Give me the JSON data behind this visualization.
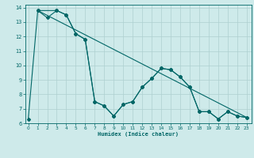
{
  "xlabel": "Humidex (Indice chaleur)",
  "background_color": "#ceeaea",
  "grid_color": "#aed0d0",
  "line_color": "#006666",
  "series1_x": [
    0,
    1,
    2,
    3,
    4,
    5,
    6,
    7,
    8,
    9,
    10,
    11,
    12,
    13,
    14,
    15,
    16,
    17,
    18,
    19,
    20,
    21,
    22,
    23
  ],
  "series1_y": [
    6.3,
    13.8,
    13.3,
    13.8,
    13.5,
    12.2,
    11.8,
    7.5,
    7.2,
    6.5,
    7.3,
    7.5,
    8.5,
    9.1,
    9.8,
    9.7,
    9.2,
    8.5,
    6.8,
    6.8,
    6.3,
    6.8,
    6.5,
    6.4
  ],
  "series2_x": [
    1,
    23
  ],
  "series2_y": [
    13.8,
    6.4
  ],
  "series3_x": [
    1,
    3,
    4,
    5,
    6,
    7,
    8,
    9,
    10,
    11,
    12,
    13,
    14,
    15,
    16,
    17,
    18,
    19,
    20,
    21,
    22,
    23
  ],
  "series3_y": [
    13.8,
    13.8,
    13.5,
    12.2,
    11.8,
    7.5,
    7.2,
    6.5,
    7.3,
    7.5,
    8.5,
    9.1,
    9.8,
    9.7,
    9.2,
    8.5,
    6.8,
    6.8,
    6.3,
    6.8,
    6.5,
    6.4
  ],
  "xlim": [
    -0.3,
    23.5
  ],
  "ylim": [
    6.0,
    14.2
  ],
  "yticks": [
    6,
    7,
    8,
    9,
    10,
    11,
    12,
    13,
    14
  ],
  "xticks": [
    0,
    1,
    2,
    3,
    4,
    5,
    6,
    7,
    8,
    9,
    10,
    11,
    12,
    13,
    14,
    15,
    16,
    17,
    18,
    19,
    20,
    21,
    22,
    23
  ]
}
